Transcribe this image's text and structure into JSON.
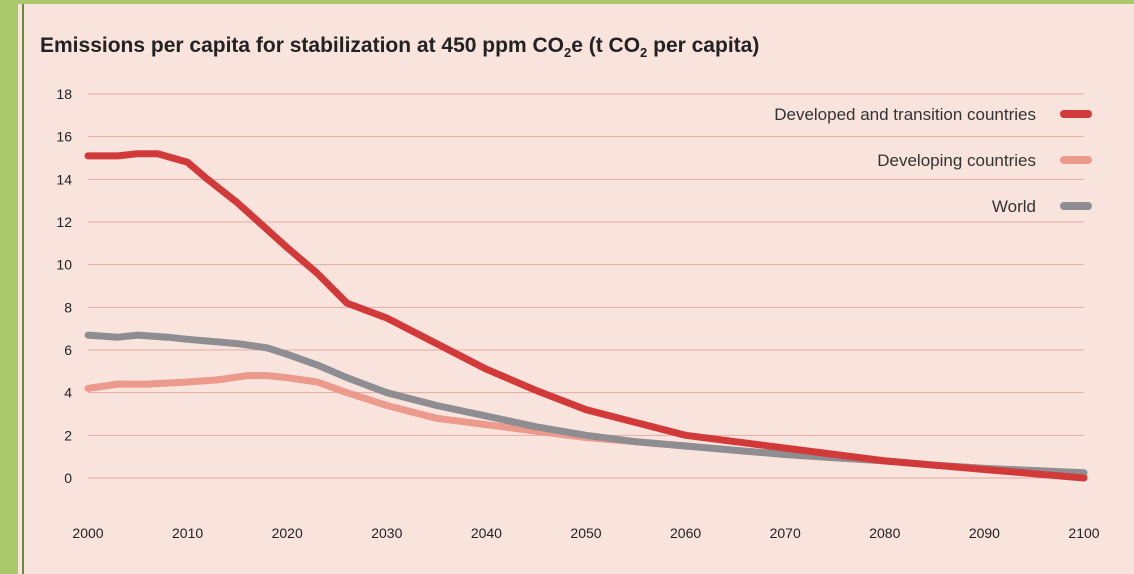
{
  "chart_data": {
    "type": "line",
    "title": "Emissions per capita for stabilization at 450 ppm CO2e (t CO2 per capita)",
    "title_parts": {
      "a": "Emissions per capita for stabilization at 450 ppm CO",
      "sub1": "2",
      "b": "e (t CO",
      "sub2": "2",
      "c": " per capita)"
    },
    "xlabel": "",
    "ylabel": "",
    "xlim": [
      2000,
      2100
    ],
    "ylim": [
      0,
      18
    ],
    "x_ticks": [
      2000,
      2010,
      2020,
      2030,
      2040,
      2050,
      2060,
      2070,
      2080,
      2090,
      2100
    ],
    "y_ticks": [
      0,
      2,
      4,
      6,
      8,
      10,
      12,
      14,
      16,
      18
    ],
    "grid": true,
    "legend_position": "top-right",
    "series": [
      {
        "name": "Developed and transition countries",
        "color": "#d23a3a",
        "points": [
          [
            2000,
            15.1
          ],
          [
            2003,
            15.1
          ],
          [
            2005,
            15.2
          ],
          [
            2007,
            15.2
          ],
          [
            2010,
            14.8
          ],
          [
            2012,
            14.0
          ],
          [
            2015,
            12.9
          ],
          [
            2020,
            10.8
          ],
          [
            2023,
            9.6
          ],
          [
            2026,
            8.2
          ],
          [
            2030,
            7.5
          ],
          [
            2035,
            6.3
          ],
          [
            2040,
            5.1
          ],
          [
            2045,
            4.1
          ],
          [
            2050,
            3.2
          ],
          [
            2055,
            2.6
          ],
          [
            2060,
            2.0
          ],
          [
            2065,
            1.7
          ],
          [
            2070,
            1.4
          ],
          [
            2075,
            1.1
          ],
          [
            2080,
            0.8
          ],
          [
            2085,
            0.6
          ],
          [
            2090,
            0.4
          ],
          [
            2095,
            0.2
          ],
          [
            2100,
            0.0
          ]
        ]
      },
      {
        "name": "Developing countries",
        "color": "#ec9a8c",
        "points": [
          [
            2000,
            4.2
          ],
          [
            2003,
            4.4
          ],
          [
            2006,
            4.4
          ],
          [
            2010,
            4.5
          ],
          [
            2013,
            4.6
          ],
          [
            2016,
            4.8
          ],
          [
            2018,
            4.8
          ],
          [
            2020,
            4.7
          ],
          [
            2023,
            4.5
          ],
          [
            2026,
            4.0
          ],
          [
            2030,
            3.4
          ],
          [
            2035,
            2.8
          ],
          [
            2040,
            2.5
          ],
          [
            2045,
            2.2
          ],
          [
            2050,
            1.9
          ],
          [
            2055,
            1.7
          ],
          [
            2060,
            1.5
          ],
          [
            2065,
            1.3
          ],
          [
            2070,
            1.1
          ],
          [
            2075,
            0.95
          ],
          [
            2080,
            0.8
          ],
          [
            2085,
            0.6
          ],
          [
            2090,
            0.45
          ],
          [
            2095,
            0.3
          ],
          [
            2100,
            0.2
          ]
        ]
      },
      {
        "name": "World",
        "color": "#8d8d92",
        "points": [
          [
            2000,
            6.7
          ],
          [
            2003,
            6.6
          ],
          [
            2005,
            6.7
          ],
          [
            2008,
            6.6
          ],
          [
            2010,
            6.5
          ],
          [
            2015,
            6.3
          ],
          [
            2018,
            6.1
          ],
          [
            2020,
            5.8
          ],
          [
            2023,
            5.3
          ],
          [
            2026,
            4.7
          ],
          [
            2030,
            4.0
          ],
          [
            2035,
            3.4
          ],
          [
            2040,
            2.9
          ],
          [
            2045,
            2.4
          ],
          [
            2050,
            2.0
          ],
          [
            2055,
            1.7
          ],
          [
            2060,
            1.5
          ],
          [
            2065,
            1.3
          ],
          [
            2070,
            1.1
          ],
          [
            2075,
            0.95
          ],
          [
            2080,
            0.8
          ],
          [
            2085,
            0.6
          ],
          [
            2090,
            0.45
          ],
          [
            2095,
            0.35
          ],
          [
            2100,
            0.25
          ]
        ]
      }
    ]
  }
}
